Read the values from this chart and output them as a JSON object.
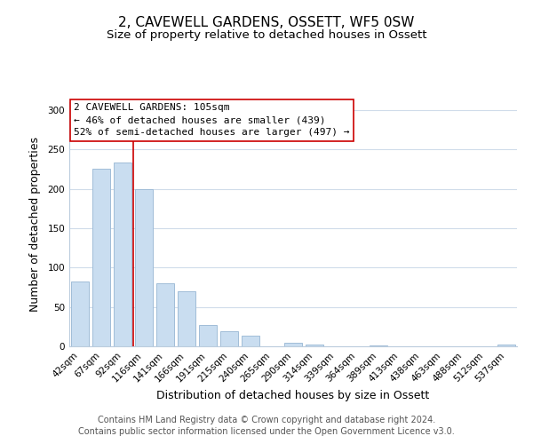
{
  "title": "2, CAVEWELL GARDENS, OSSETT, WF5 0SW",
  "subtitle": "Size of property relative to detached houses in Ossett",
  "xlabel": "Distribution of detached houses by size in Ossett",
  "ylabel": "Number of detached properties",
  "bar_labels": [
    "42sqm",
    "67sqm",
    "92sqm",
    "116sqm",
    "141sqm",
    "166sqm",
    "191sqm",
    "215sqm",
    "240sqm",
    "265sqm",
    "290sqm",
    "314sqm",
    "339sqm",
    "364sqm",
    "389sqm",
    "413sqm",
    "438sqm",
    "463sqm",
    "488sqm",
    "512sqm",
    "537sqm"
  ],
  "bar_values": [
    82,
    226,
    233,
    199,
    80,
    70,
    27,
    19,
    13,
    0,
    4,
    2,
    0,
    0,
    1,
    0,
    0,
    0,
    0,
    0,
    2
  ],
  "bar_color": "#c9ddf0",
  "bar_edge_color": "#a0bdd8",
  "vline_x": 2.5,
  "vline_color": "#cc0000",
  "annotation_title": "2 CAVEWELL GARDENS: 105sqm",
  "annotation_line1": "← 46% of detached houses are smaller (439)",
  "annotation_line2": "52% of semi-detached houses are larger (497) →",
  "annotation_box_color": "#ffffff",
  "annotation_box_edge": "#cc0000",
  "ylim": [
    0,
    310
  ],
  "yticks": [
    0,
    50,
    100,
    150,
    200,
    250,
    300
  ],
  "footer1": "Contains HM Land Registry data © Crown copyright and database right 2024.",
  "footer2": "Contains public sector information licensed under the Open Government Licence v3.0.",
  "title_fontsize": 11,
  "subtitle_fontsize": 9.5,
  "axis_label_fontsize": 9,
  "tick_fontsize": 7.5,
  "annotation_fontsize": 8,
  "footer_fontsize": 7,
  "bg_color": "#ffffff",
  "grid_color": "#d0dcea"
}
